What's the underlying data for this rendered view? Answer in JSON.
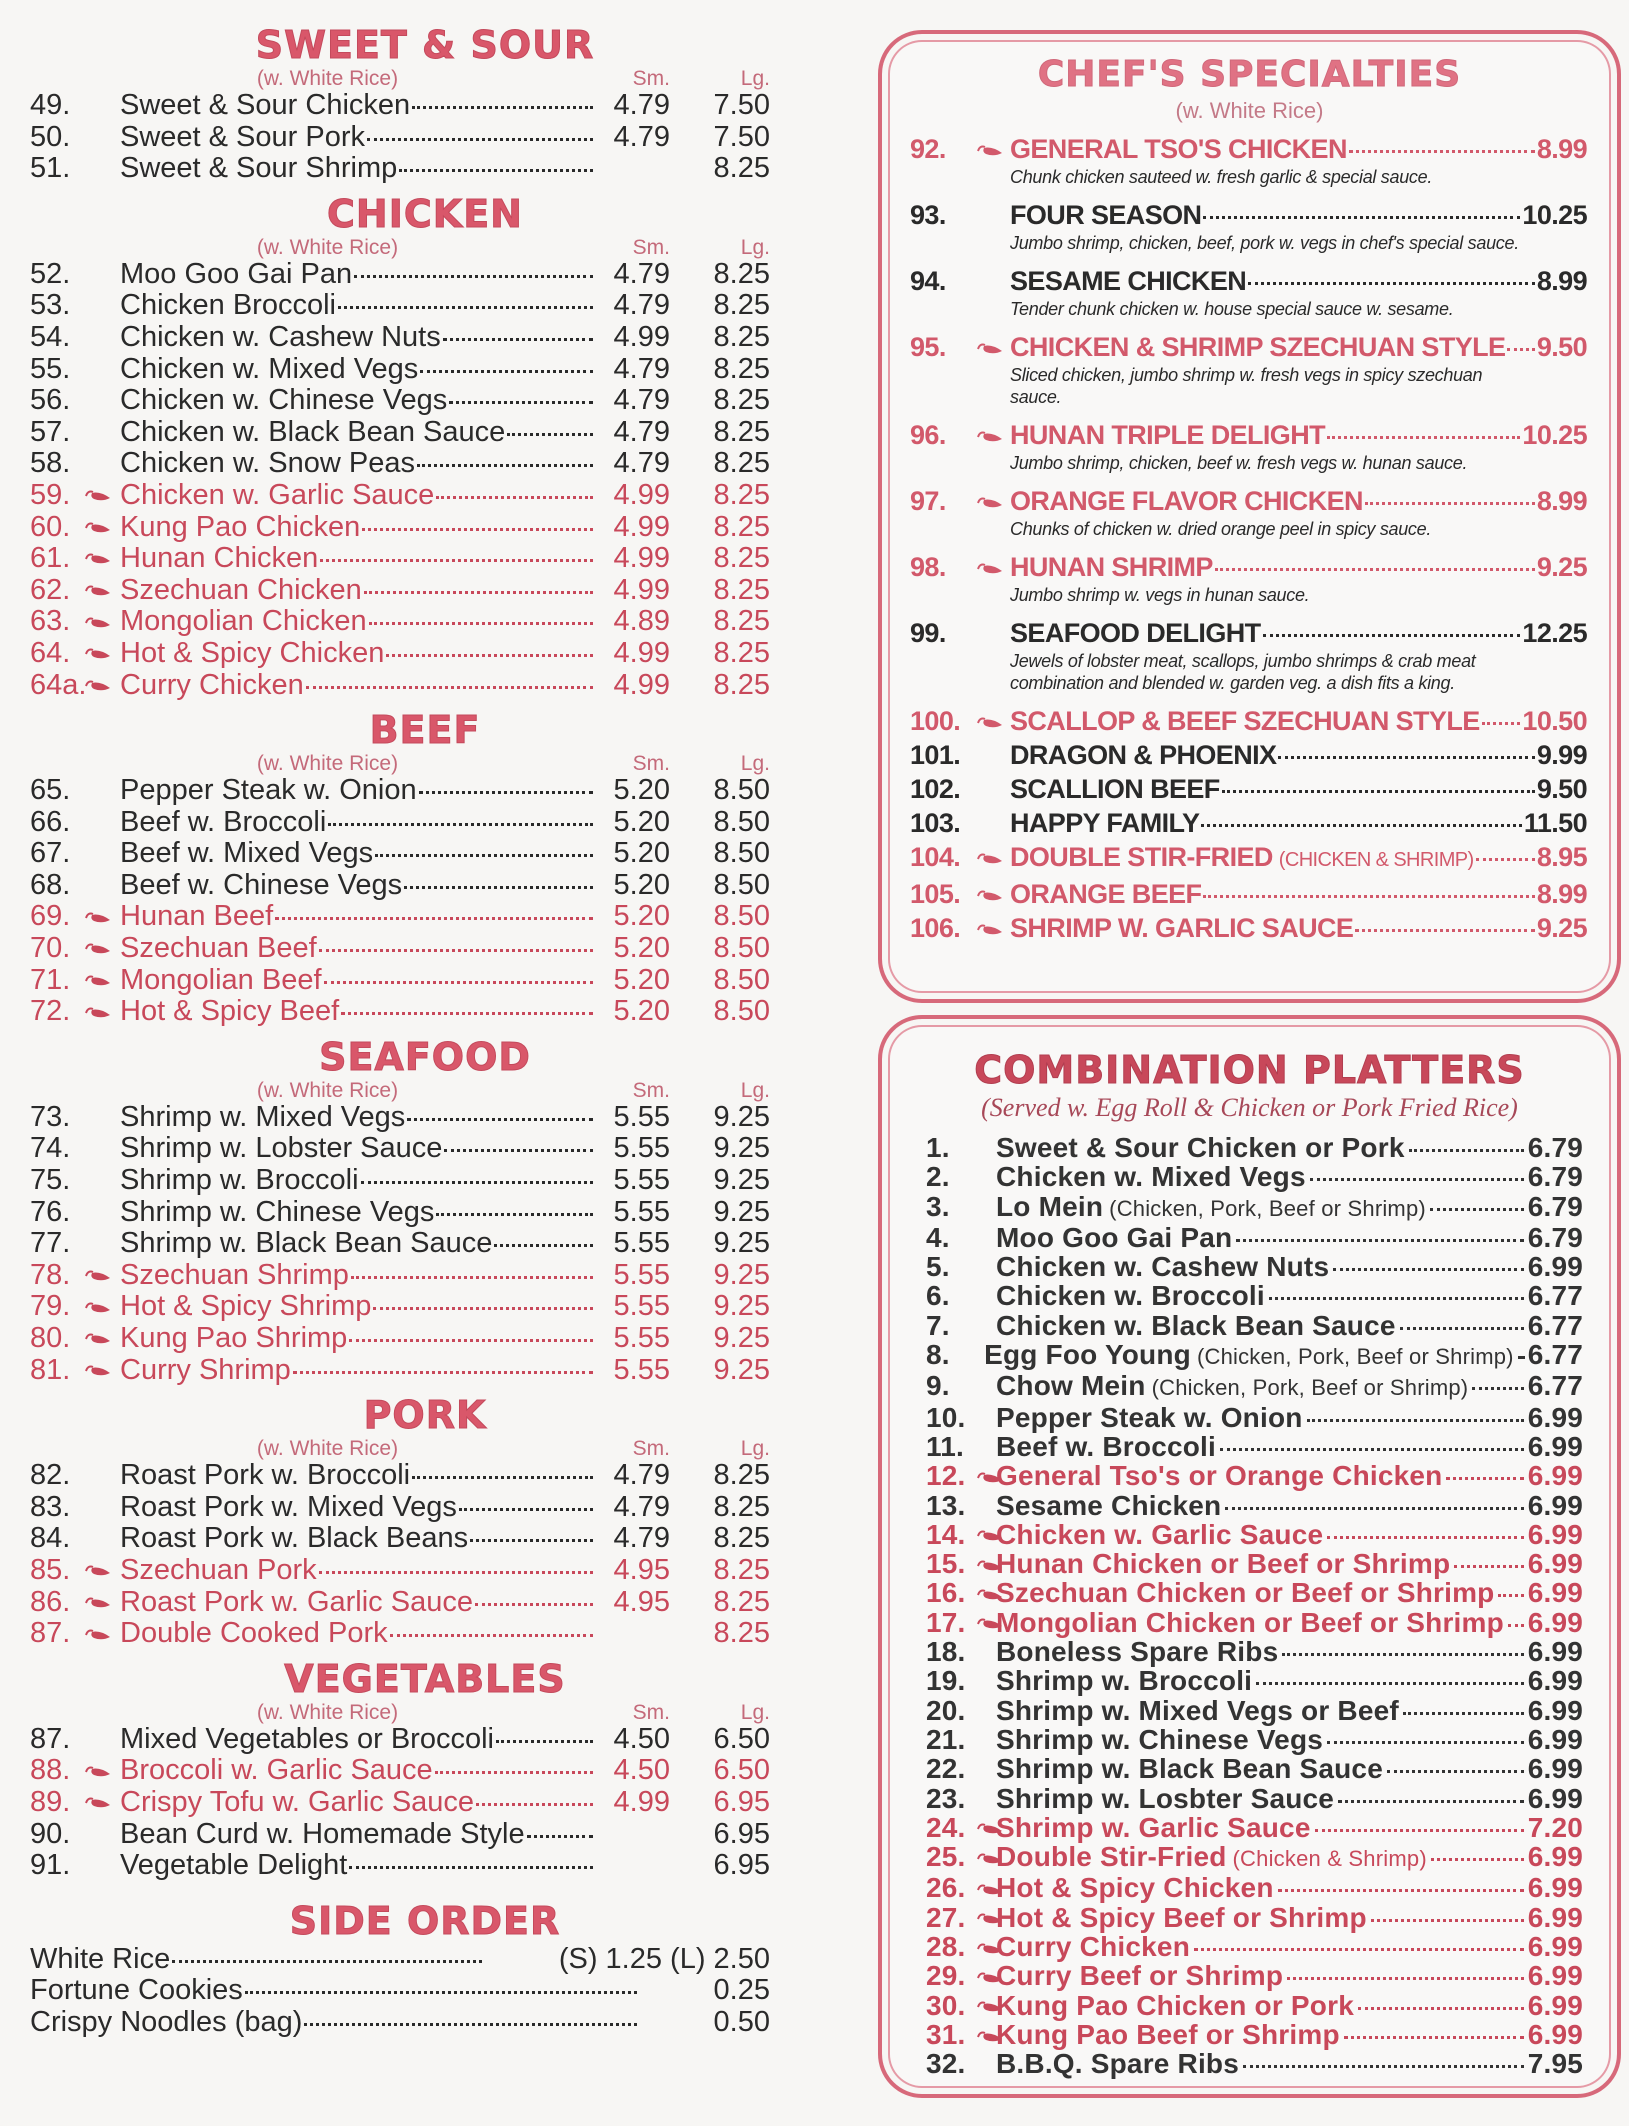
{
  "colors": {
    "accent": "#c8485a",
    "title": "#d9576a",
    "text": "#2a2a2a"
  },
  "left_sections": [
    {
      "title": "SWEET & SOUR",
      "sub": "(w. White Rice)",
      "sm_label": "Sm.",
      "lg_label": "Lg.",
      "items": [
        {
          "num": "49.",
          "name": "Sweet & Sour Chicken",
          "sm": "4.79",
          "lg": "7.50"
        },
        {
          "num": "50.",
          "name": "Sweet & Sour Pork",
          "sm": "4.79",
          "lg": "7.50"
        },
        {
          "num": "51.",
          "name": "Sweet & Sour Shrimp",
          "sm": "",
          "lg": "8.25"
        }
      ]
    },
    {
      "title": "CHICKEN",
      "sub": "(w. White Rice)",
      "sm_label": "Sm.",
      "lg_label": "Lg.",
      "items": [
        {
          "num": "52.",
          "name": "Moo Goo Gai Pan",
          "sm": "4.79",
          "lg": "8.25"
        },
        {
          "num": "53.",
          "name": "Chicken Broccoli",
          "sm": "4.79",
          "lg": "8.25"
        },
        {
          "num": "54.",
          "name": "Chicken w. Cashew Nuts",
          "sm": "4.99",
          "lg": "8.25"
        },
        {
          "num": "55.",
          "name": "Chicken w. Mixed Vegs",
          "sm": "4.79",
          "lg": "8.25"
        },
        {
          "num": "56.",
          "name": "Chicken w. Chinese Vegs",
          "sm": "4.79",
          "lg": "8.25"
        },
        {
          "num": "57.",
          "name": "Chicken w. Black Bean Sauce",
          "sm": "4.79",
          "lg": "8.25"
        },
        {
          "num": "58.",
          "name": "Chicken w. Snow Peas",
          "sm": "4.79",
          "lg": "8.25"
        },
        {
          "num": "59.",
          "name": "Chicken w. Garlic Sauce",
          "sm": "4.99",
          "lg": "8.25",
          "spicy": true
        },
        {
          "num": "60.",
          "name": "Kung Pao Chicken",
          "sm": "4.99",
          "lg": "8.25",
          "spicy": true
        },
        {
          "num": "61.",
          "name": "Hunan Chicken",
          "sm": "4.99",
          "lg": "8.25",
          "spicy": true
        },
        {
          "num": "62.",
          "name": "Szechuan Chicken",
          "sm": "4.99",
          "lg": "8.25",
          "spicy": true
        },
        {
          "num": "63.",
          "name": "Mongolian Chicken",
          "sm": "4.89",
          "lg": "8.25",
          "spicy": true
        },
        {
          "num": "64.",
          "name": "Hot & Spicy Chicken",
          "sm": "4.99",
          "lg": "8.25",
          "spicy": true
        },
        {
          "num": "64a.",
          "name": "Curry Chicken",
          "sm": "4.99",
          "lg": "8.25",
          "spicy": true
        }
      ]
    },
    {
      "title": "BEEF",
      "sub": "(w. White Rice)",
      "sm_label": "Sm.",
      "lg_label": "Lg.",
      "items": [
        {
          "num": "65.",
          "name": "Pepper Steak w. Onion",
          "sm": "5.20",
          "lg": "8.50"
        },
        {
          "num": "66.",
          "name": "Beef w. Broccoli",
          "sm": "5.20",
          "lg": "8.50"
        },
        {
          "num": "67.",
          "name": "Beef w. Mixed Vegs",
          "sm": "5.20",
          "lg": "8.50"
        },
        {
          "num": "68.",
          "name": "Beef w. Chinese Vegs",
          "sm": "5.20",
          "lg": "8.50"
        },
        {
          "num": "69.",
          "name": "Hunan Beef",
          "sm": "5.20",
          "lg": "8.50",
          "spicy": true
        },
        {
          "num": "70.",
          "name": "Szechuan Beef",
          "sm": "5.20",
          "lg": "8.50",
          "spicy": true
        },
        {
          "num": "71.",
          "name": "Mongolian Beef",
          "sm": "5.20",
          "lg": "8.50",
          "spicy": true
        },
        {
          "num": "72.",
          "name": "Hot & Spicy Beef",
          "sm": "5.20",
          "lg": "8.50",
          "spicy": true
        }
      ]
    },
    {
      "title": "SEAFOOD",
      "sub": "(w. White Rice)",
      "sm_label": "Sm.",
      "lg_label": "Lg.",
      "items": [
        {
          "num": "73.",
          "name": "Shrimp w. Mixed Vegs",
          "sm": "5.55",
          "lg": "9.25"
        },
        {
          "num": "74.",
          "name": "Shrimp w. Lobster Sauce",
          "sm": "5.55",
          "lg": "9.25"
        },
        {
          "num": "75.",
          "name": "Shrimp w. Broccoli",
          "sm": "5.55",
          "lg": "9.25"
        },
        {
          "num": "76.",
          "name": "Shrimp w. Chinese Vegs",
          "sm": "5.55",
          "lg": "9.25"
        },
        {
          "num": "77.",
          "name": "Shrimp w. Black Bean Sauce",
          "sm": "5.55",
          "lg": "9.25"
        },
        {
          "num": "78.",
          "name": "Szechuan Shrimp",
          "sm": "5.55",
          "lg": "9.25",
          "spicy": true
        },
        {
          "num": "79.",
          "name": "Hot & Spicy Shrimp",
          "sm": "5.55",
          "lg": "9.25",
          "spicy": true
        },
        {
          "num": "80.",
          "name": "Kung Pao Shrimp",
          "sm": "5.55",
          "lg": "9.25",
          "spicy": true
        },
        {
          "num": "81.",
          "name": "Curry Shrimp",
          "sm": "5.55",
          "lg": "9.25",
          "spicy": true
        }
      ]
    },
    {
      "title": "PORK",
      "sub": "(w. White Rice)",
      "sm_label": "Sm.",
      "lg_label": "Lg.",
      "items": [
        {
          "num": "82.",
          "name": "Roast Pork w. Broccoli",
          "sm": "4.79",
          "lg": "8.25"
        },
        {
          "num": "83.",
          "name": "Roast Pork w. Mixed Vegs",
          "sm": "4.79",
          "lg": "8.25"
        },
        {
          "num": "84.",
          "name": "Roast Pork w. Black Beans",
          "sm": "4.79",
          "lg": "8.25"
        },
        {
          "num": "85.",
          "name": "Szechuan Pork",
          "sm": "4.95",
          "lg": "8.25",
          "spicy": true
        },
        {
          "num": "86.",
          "name": "Roast Pork w. Garlic Sauce",
          "sm": "4.95",
          "lg": "8.25",
          "spicy": true
        },
        {
          "num": "87.",
          "name": "Double Cooked Pork",
          "sm": "",
          "lg": "8.25",
          "spicy": true
        }
      ]
    },
    {
      "title": "VEGETABLES",
      "sub": "(w. White Rice)",
      "sm_label": "Sm.",
      "lg_label": "Lg.",
      "items": [
        {
          "num": "87.",
          "name": "Mixed Vegetables or Broccoli",
          "sm": "4.50",
          "lg": "6.50"
        },
        {
          "num": "88.",
          "name": "Broccoli w. Garlic Sauce",
          "sm": "4.50",
          "lg": "6.50",
          "spicy": true
        },
        {
          "num": "89.",
          "name": "Crispy Tofu w. Garlic Sauce",
          "sm": "4.99",
          "lg": "6.95",
          "spicy": true
        },
        {
          "num": "90.",
          "name": "Bean Curd w. Homemade Style",
          "sm": "",
          "lg": "6.95"
        },
        {
          "num": "91.",
          "name": "Vegetable Delight",
          "sm": "",
          "lg": "6.95"
        }
      ]
    },
    {
      "title": "SIDE ORDER",
      "side": true,
      "items": [
        {
          "num": "",
          "name": "White Rice",
          "sm": "",
          "lg": "(S) 1.25 (L) 2.50"
        },
        {
          "num": "",
          "name": "Fortune Cookies",
          "sm": "",
          "lg": "0.25"
        },
        {
          "num": "",
          "name": "Crispy Noodles (bag)",
          "sm": "",
          "lg": "0.50"
        }
      ]
    }
  ],
  "chef": {
    "title": "CHEF'S SPECIALTIES",
    "sub": "(w. White Rice)",
    "items": [
      {
        "num": "92.",
        "name": "GENERAL TSO'S CHICKEN",
        "price": "8.99",
        "spicy": true,
        "desc": "Chunk chicken sauteed w. fresh garlic & special sauce."
      },
      {
        "num": "93.",
        "name": "FOUR SEASON",
        "price": "10.25",
        "desc": "Jumbo shrimp, chicken, beef, pork w. vegs in chef's special sauce."
      },
      {
        "num": "94.",
        "name": "SESAME CHICKEN",
        "price": "8.99",
        "desc": "Tender chunk chicken w. house special sauce w. sesame."
      },
      {
        "num": "95.",
        "name": "CHICKEN & SHRIMP SZECHUAN STYLE",
        "price": "9.50",
        "spicy": true,
        "desc": "Sliced chicken, jumbo shrimp w. fresh vegs in spicy szechuan sauce."
      },
      {
        "num": "96.",
        "name": "HUNAN TRIPLE DELIGHT",
        "price": "10.25",
        "spicy": true,
        "desc": "Jumbo shrimp, chicken, beef w. fresh vegs w. hunan sauce."
      },
      {
        "num": "97.",
        "name": "ORANGE FLAVOR CHICKEN",
        "price": "8.99",
        "spicy": true,
        "desc": "Chunks of chicken w. dried orange peel in spicy sauce."
      },
      {
        "num": "98.",
        "name": "HUNAN SHRIMP",
        "price": "9.25",
        "spicy": true,
        "desc": "Jumbo shrimp w. vegs in hunan sauce."
      },
      {
        "num": "99.",
        "name": "SEAFOOD DELIGHT",
        "price": "12.25",
        "desc": "Jewels of lobster meat, scallops, jumbo shrimps & crab meat combination and blended w. garden veg. a dish fits a king."
      },
      {
        "num": "100.",
        "name": "SCALLOP & BEEF SZECHUAN STYLE",
        "price": "10.50",
        "spicy": true
      },
      {
        "num": "101.",
        "name": "DRAGON & PHOENIX",
        "price": "9.99"
      },
      {
        "num": "102.",
        "name": "SCALLION BEEF",
        "price": "9.50"
      },
      {
        "num": "103.",
        "name": "HAPPY FAMILY",
        "price": "11.50"
      },
      {
        "num": "104.",
        "name": "DOUBLE STIR-FRIED",
        "note": "(CHICKEN & SHRIMP)",
        "price": "8.95",
        "spicy": true
      },
      {
        "num": "105.",
        "name": "ORANGE BEEF",
        "price": "8.99",
        "spicy": true
      },
      {
        "num": "106.",
        "name": "SHRIMP W. GARLIC SAUCE",
        "price": "9.25",
        "spicy": true
      }
    ]
  },
  "combo": {
    "title": "COMBINATION PLATTERS",
    "sub": "(Served w. Egg Roll & Chicken or Pork Fried Rice)",
    "items": [
      {
        "num": "1.",
        "name": "Sweet & Sour Chicken or Pork",
        "price": "6.79"
      },
      {
        "num": "2.",
        "name": "Chicken w. Mixed Vegs",
        "price": "6.79"
      },
      {
        "num": "3.",
        "name": "Lo Mein",
        "note": "(Chicken, Pork, Beef or Shrimp)",
        "price": "6.79"
      },
      {
        "num": "4.",
        "name": "Moo Goo Gai Pan",
        "price": "6.79"
      },
      {
        "num": "5.",
        "name": "Chicken w. Cashew Nuts",
        "price": "6.99"
      },
      {
        "num": "6.",
        "name": "Chicken w. Broccoli",
        "price": "6.77"
      },
      {
        "num": "7.",
        "name": "Chicken w. Black Bean Sauce",
        "price": "6.77"
      },
      {
        "num": "8.",
        "name": "Egg Foo Young",
        "note": "(Chicken, Pork, Beef or Shrimp)",
        "price": "6.77"
      },
      {
        "num": "9.",
        "name": "Chow Mein",
        "note": "(Chicken, Pork, Beef or Shrimp)",
        "price": "6.77"
      },
      {
        "num": "10.",
        "name": "Pepper Steak w. Onion",
        "price": "6.99"
      },
      {
        "num": "11.",
        "name": "Beef w. Broccoli",
        "price": "6.99"
      },
      {
        "num": "12.",
        "name": "General Tso's or Orange Chicken",
        "price": "6.99",
        "spicy": true
      },
      {
        "num": "13.",
        "name": "Sesame Chicken",
        "price": "6.99"
      },
      {
        "num": "14.",
        "name": "Chicken w. Garlic Sauce",
        "price": "6.99",
        "spicy": true
      },
      {
        "num": "15.",
        "name": "Hunan Chicken or Beef or Shrimp",
        "price": "6.99",
        "spicy": true
      },
      {
        "num": "16.",
        "name": "Szechuan Chicken or Beef or Shrimp",
        "price": "6.99",
        "spicy": true
      },
      {
        "num": "17.",
        "name": "Mongolian Chicken or Beef or Shrimp",
        "price": "6.99",
        "spicy": true
      },
      {
        "num": "18.",
        "name": "Boneless Spare Ribs",
        "price": "6.99"
      },
      {
        "num": "19.",
        "name": "Shrimp w. Broccoli",
        "price": "6.99"
      },
      {
        "num": "20.",
        "name": "Shrimp w. Mixed Vegs or Beef",
        "price": "6.99"
      },
      {
        "num": "21.",
        "name": "Shrimp w. Chinese Vegs",
        "price": "6.99"
      },
      {
        "num": "22.",
        "name": "Shrimp w. Black Bean Sauce",
        "price": "6.99"
      },
      {
        "num": "23.",
        "name": "Shrimp w. Losbter Sauce",
        "price": "6.99"
      },
      {
        "num": "24.",
        "name": "Shrimp w. Garlic Sauce",
        "price": "7.20",
        "spicy": true
      },
      {
        "num": "25.",
        "name": "Double Stir-Fried",
        "note": "(Chicken & Shrimp)",
        "price": "6.99",
        "spicy": true
      },
      {
        "num": "26.",
        "name": "Hot & Spicy Chicken",
        "price": "6.99",
        "spicy": true
      },
      {
        "num": "27.",
        "name": "Hot & Spicy Beef or Shrimp",
        "price": "6.99",
        "spicy": true
      },
      {
        "num": "28.",
        "name": "Curry Chicken",
        "price": "6.99",
        "spicy": true
      },
      {
        "num": "29.",
        "name": "Curry Beef or Shrimp",
        "price": "6.99",
        "spicy": true
      },
      {
        "num": "30.",
        "name": "Kung Pao Chicken or Pork",
        "price": "6.99",
        "spicy": true
      },
      {
        "num": "31.",
        "name": "Kung Pao Beef or Shrimp",
        "price": "6.99",
        "spicy": true
      },
      {
        "num": "32.",
        "name": "B.B.Q. Spare Ribs",
        "price": "7.95"
      }
    ]
  }
}
